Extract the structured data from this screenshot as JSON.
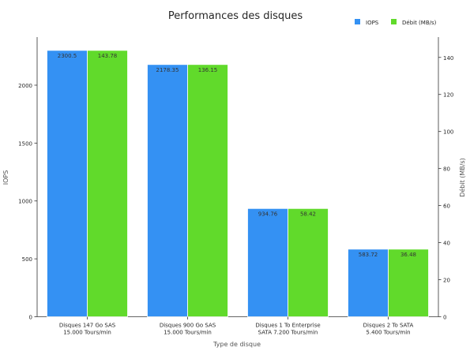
{
  "chart_data": {
    "type": "bar",
    "title": "Performances des disques",
    "xlabel": "Type de disque",
    "ylabel_left": "IOPS",
    "ylabel_right": "Débit (MB/s)",
    "categories": [
      [
        "Disques 147 Go SAS",
        "15.000 Tours/min"
      ],
      [
        "Disques 900 Go SAS",
        "15.000 Tours/min"
      ],
      [
        "Disques 1 To Enterprise",
        "SATA 7.200 Tours/min"
      ],
      [
        "Disques 2 To SATA",
        "5.400 Tours/min"
      ]
    ],
    "series": [
      {
        "name": "IOPS",
        "axis": "left",
        "color": "#3491F3",
        "values": [
          2300.5,
          2178.35,
          934.76,
          583.72
        ],
        "labels": [
          "2300.5",
          "2178.35",
          "934.76",
          "583.72"
        ]
      },
      {
        "name": "Débit (MB/s)",
        "axis": "right",
        "color": "#61DA2B",
        "values": [
          143.78,
          136.15,
          58.42,
          36.48
        ],
        "labels": [
          "143.78",
          "136.15",
          "58.42",
          "36.48"
        ]
      }
    ],
    "y_left": {
      "min": 0,
      "max": 2415.5,
      "ticks": [
        0,
        500,
        1000,
        1500,
        2000
      ]
    },
    "y_right": {
      "min": 0,
      "max": 150.97,
      "ticks": [
        0,
        20,
        40,
        60,
        80,
        100,
        120,
        140
      ]
    },
    "grid": false,
    "legend_position": "top-right"
  }
}
